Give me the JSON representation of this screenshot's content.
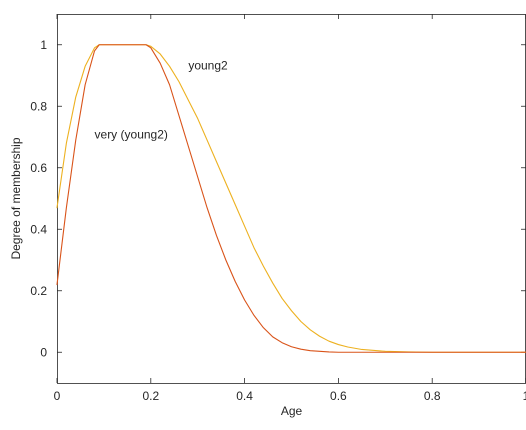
{
  "chart_data": {
    "type": "line",
    "title": "",
    "xlabel": "Age",
    "ylabel": "Degree of membership",
    "xlim": [
      0,
      1
    ],
    "ylim": [
      -0.1,
      1.1
    ],
    "x_ticks": [
      0,
      0.2,
      0.4,
      0.6,
      0.8,
      1
    ],
    "y_ticks": [
      0,
      0.2,
      0.4,
      0.6,
      0.8,
      1
    ],
    "x_tick_labels": [
      "0",
      "0.2",
      "0.4",
      "0.6",
      "0.8",
      "1"
    ],
    "y_tick_labels": [
      "0",
      "0.2",
      "0.4",
      "0.6",
      "0.8",
      "1"
    ],
    "grid": false,
    "box": true,
    "series": [
      {
        "name": "young2",
        "color": "#EDB120",
        "x": [
          0,
          0.02,
          0.04,
          0.06,
          0.08,
          0.09,
          0.1,
          0.12,
          0.14,
          0.16,
          0.18,
          0.19,
          0.2,
          0.22,
          0.24,
          0.26,
          0.28,
          0.3,
          0.32,
          0.34,
          0.36,
          0.38,
          0.4,
          0.42,
          0.44,
          0.46,
          0.48,
          0.5,
          0.52,
          0.54,
          0.56,
          0.58,
          0.6,
          0.62,
          0.65,
          0.7,
          0.75,
          0.8,
          0.9,
          1.0
        ],
        "y": [
          0.47,
          0.68,
          0.83,
          0.93,
          0.99,
          1.0,
          1.0,
          1.0,
          1.0,
          1.0,
          1.0,
          1.0,
          0.995,
          0.97,
          0.93,
          0.88,
          0.82,
          0.76,
          0.69,
          0.62,
          0.55,
          0.48,
          0.41,
          0.34,
          0.28,
          0.225,
          0.175,
          0.135,
          0.1,
          0.073,
          0.052,
          0.036,
          0.025,
          0.017,
          0.009,
          0.003,
          0.001,
          0.0,
          0.0,
          0.0
        ]
      },
      {
        "name": "very (young2)",
        "color": "#D95319",
        "x": [
          0,
          0.02,
          0.04,
          0.06,
          0.08,
          0.09,
          0.1,
          0.12,
          0.14,
          0.16,
          0.18,
          0.19,
          0.2,
          0.22,
          0.24,
          0.26,
          0.28,
          0.3,
          0.32,
          0.34,
          0.36,
          0.38,
          0.4,
          0.42,
          0.44,
          0.46,
          0.48,
          0.5,
          0.52,
          0.54,
          0.56,
          0.58,
          0.6,
          0.65,
          0.7,
          0.8,
          0.9,
          1.0
        ],
        "y": [
          0.22,
          0.47,
          0.69,
          0.87,
          0.98,
          1.0,
          1.0,
          1.0,
          1.0,
          1.0,
          1.0,
          1.0,
          0.99,
          0.94,
          0.87,
          0.77,
          0.67,
          0.57,
          0.47,
          0.38,
          0.3,
          0.23,
          0.17,
          0.12,
          0.08,
          0.05,
          0.031,
          0.018,
          0.01,
          0.005,
          0.003,
          0.001,
          0.0,
          0.0,
          0.0,
          0.0,
          0.0,
          0.0
        ]
      }
    ],
    "annotations": [
      {
        "text": "young2",
        "x": 0.28,
        "y": 0.92
      },
      {
        "text": "very (young2)",
        "x": 0.08,
        "y": 0.695
      }
    ]
  },
  "colors": {
    "axis": "#262626",
    "background": "#ffffff"
  }
}
